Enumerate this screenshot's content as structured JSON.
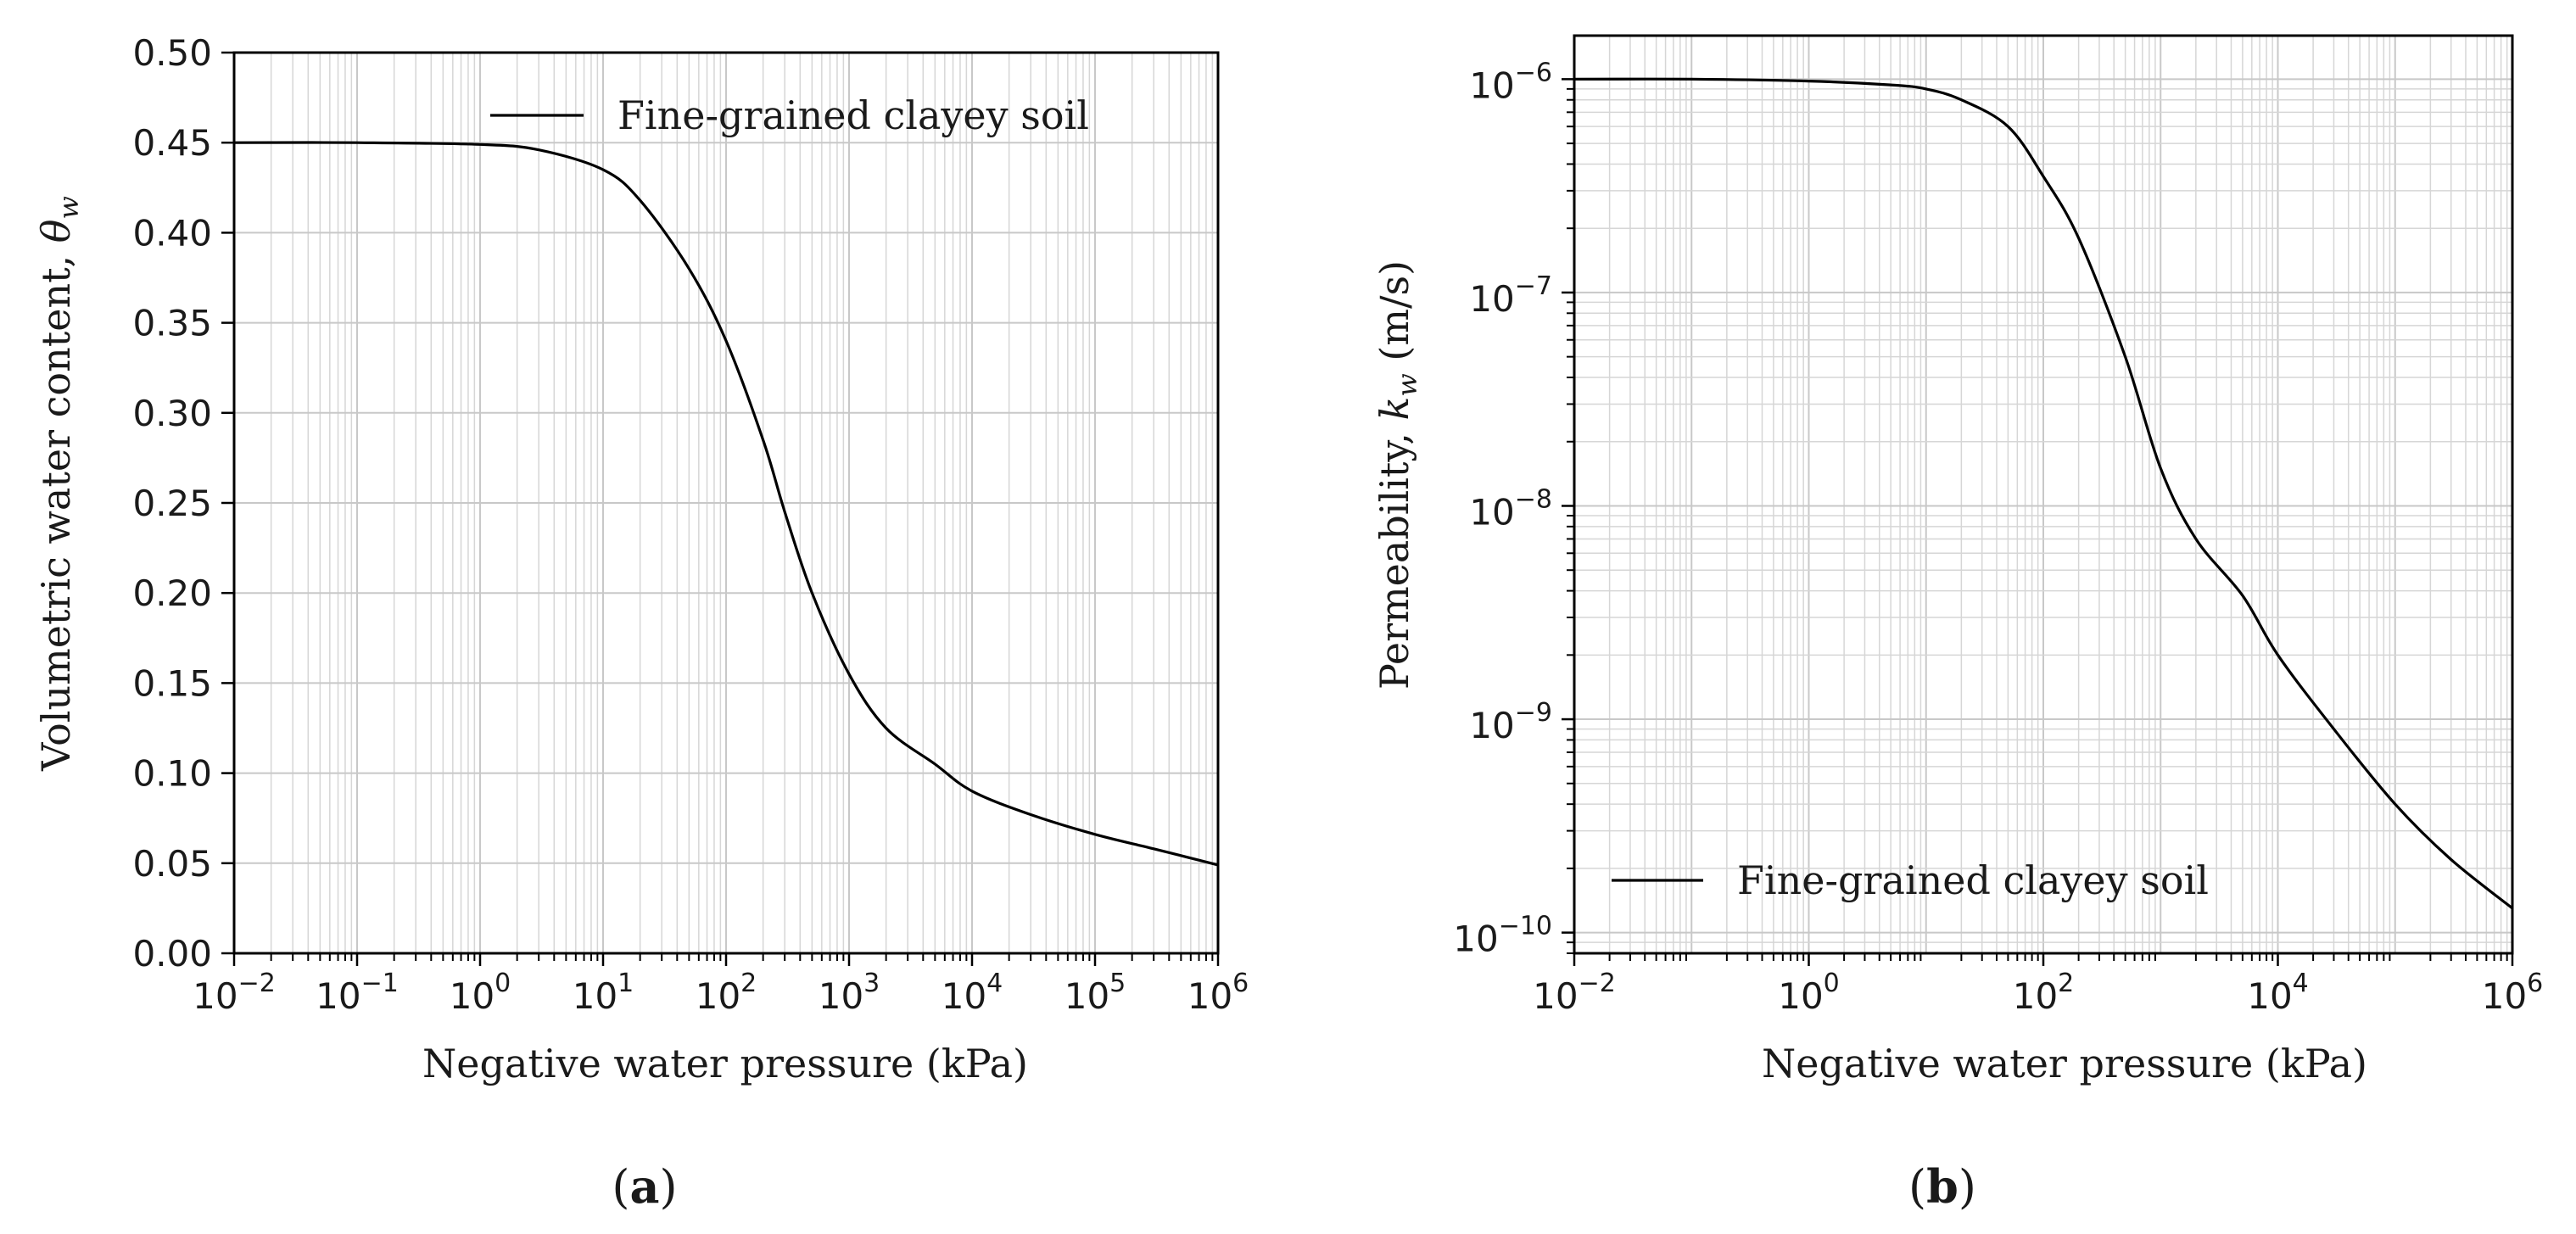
{
  "figure": {
    "panel_a_label": "(a)",
    "panel_b_label": "(b)"
  },
  "chart_data": [
    {
      "id": "a",
      "type": "line",
      "xscale": "log",
      "yscale": "linear",
      "xlim": [
        0.01,
        1000000
      ],
      "ylim": [
        0.0,
        0.5
      ],
      "xlabel": "Negative water pressure (kPa)",
      "ylabel": "Volumetric water content, θw",
      "ylabel_text": "Volumetric water content, ",
      "ylabel_symbol": "θ",
      "ylabel_subscript": "w",
      "xticks": [
        0.01,
        0.1,
        1,
        10,
        100,
        1000,
        10000,
        100000,
        1000000
      ],
      "xtick_labels": [
        {
          "base": "10",
          "exp": "−2"
        },
        {
          "base": "10",
          "exp": "−1"
        },
        {
          "base": "10",
          "exp": "0"
        },
        {
          "base": "10",
          "exp": "1"
        },
        {
          "base": "10",
          "exp": "2"
        },
        {
          "base": "10",
          "exp": "3"
        },
        {
          "base": "10",
          "exp": "4"
        },
        {
          "base": "10",
          "exp": "5"
        },
        {
          "base": "10",
          "exp": "6"
        }
      ],
      "yticks": [
        0.0,
        0.05,
        0.1,
        0.15,
        0.2,
        0.25,
        0.3,
        0.35,
        0.4,
        0.45,
        0.5
      ],
      "ytick_labels": [
        "0.00",
        "0.05",
        "0.10",
        "0.15",
        "0.20",
        "0.25",
        "0.30",
        "0.35",
        "0.40",
        "0.45",
        "0.50"
      ],
      "grid": true,
      "legend": {
        "position": "upper-right",
        "entries": [
          "Fine-grained clayey soil"
        ]
      },
      "series": [
        {
          "name": "Fine-grained clayey soil",
          "x": [
            0.01,
            0.1,
            1,
            3,
            10,
            20,
            50,
            100,
            200,
            300,
            500,
            1000,
            2000,
            5000,
            10000,
            30000,
            100000,
            300000,
            1000000
          ],
          "y": [
            0.45,
            0.45,
            0.449,
            0.446,
            0.435,
            0.418,
            0.38,
            0.34,
            0.285,
            0.245,
            0.2,
            0.155,
            0.125,
            0.105,
            0.09,
            0.077,
            0.066,
            0.058,
            0.049
          ]
        }
      ]
    },
    {
      "id": "b",
      "type": "line",
      "xscale": "log",
      "yscale": "log",
      "xlim": [
        0.01,
        1000000
      ],
      "ylim": [
        8e-11,
        1.6e-06
      ],
      "xlabel": "Negative water pressure (kPa)",
      "ylabel": "Permeability, kw (m/s)",
      "ylabel_text": "Permeability, ",
      "ylabel_symbol": "k",
      "ylabel_subscript": "w",
      "ylabel_units": " (m/s)",
      "xticks": [
        0.01,
        1,
        100,
        10000,
        1000000
      ],
      "xtick_labels": [
        {
          "base": "10",
          "exp": "−2"
        },
        {
          "base": "10",
          "exp": "0"
        },
        {
          "base": "10",
          "exp": "2"
        },
        {
          "base": "10",
          "exp": "4"
        },
        {
          "base": "10",
          "exp": "6"
        }
      ],
      "yticks": [
        1e-10,
        1e-09,
        1e-08,
        1e-07,
        1e-06
      ],
      "ytick_labels": [
        {
          "base": "10",
          "exp": "−10"
        },
        {
          "base": "10",
          "exp": "−9"
        },
        {
          "base": "10",
          "exp": "−8"
        },
        {
          "base": "10",
          "exp": "−7"
        },
        {
          "base": "10",
          "exp": "−6"
        }
      ],
      "grid": true,
      "legend": {
        "position": "lower-left",
        "entries": [
          "Fine-grained clayey soil"
        ]
      },
      "series": [
        {
          "name": "Fine-grained clayey soil",
          "x": [
            0.01,
            0.1,
            1,
            5,
            10,
            20,
            50,
            100,
            200,
            500,
            1000,
            2000,
            5000,
            10000,
            30000,
            100000,
            300000,
            1000000
          ],
          "y": [
            1e-06,
            1e-06,
            9.8e-07,
            9.4e-07,
            9e-07,
            8e-07,
            6e-07,
            3.5e-07,
            1.8e-07,
            5e-08,
            1.5e-08,
            7e-09,
            3.8e-09,
            2e-09,
            9e-10,
            4e-10,
            2.2e-10,
            1.3e-10
          ]
        }
      ]
    }
  ]
}
